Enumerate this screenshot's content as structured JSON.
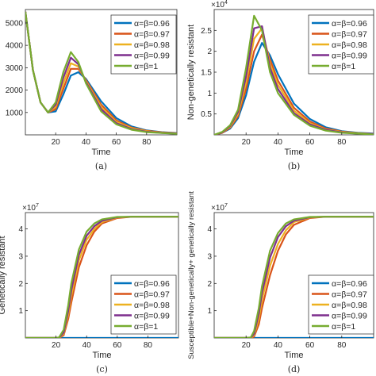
{
  "legend_labels": [
    "α=β=0.96",
    "α=β=0.97",
    "α=β=0.98",
    "α=β=0.99",
    "α=β=1"
  ],
  "series_colors": [
    "#0072BD",
    "#D95319",
    "#EDB120",
    "#7E2F8E",
    "#77AC30"
  ],
  "chart_data": [
    {
      "type": "line",
      "caption": "(a)",
      "xlabel": "Time",
      "ylabel": "",
      "exponent": "",
      "xlim": [
        0,
        100
      ],
      "ylim": [
        0,
        5600
      ],
      "xticks": [
        20,
        40,
        60,
        80
      ],
      "yticks": [
        1000,
        2000,
        3000,
        4000,
        5000
      ],
      "grid": false,
      "legend_position": "top-right",
      "x": [
        0,
        5,
        10,
        15,
        20,
        25,
        30,
        35,
        40,
        50,
        60,
        70,
        80,
        90,
        100
      ],
      "series": [
        {
          "name": "α=β=0.96",
          "values": [
            5500,
            2900,
            1450,
            1000,
            1050,
            1800,
            2650,
            2800,
            2500,
            1500,
            750,
            380,
            200,
            120,
            80
          ]
        },
        {
          "name": "α=β=0.97",
          "values": [
            5500,
            2900,
            1450,
            1000,
            1150,
            2050,
            2950,
            2950,
            2450,
            1350,
            650,
            330,
            180,
            110,
            70
          ]
        },
        {
          "name": "α=β=0.98",
          "values": [
            5500,
            2900,
            1450,
            1000,
            1250,
            2300,
            3200,
            3050,
            2400,
            1250,
            580,
            300,
            160,
            100,
            60
          ]
        },
        {
          "name": "α=β=0.99",
          "values": [
            5500,
            2900,
            1450,
            1000,
            1350,
            2550,
            3450,
            3150,
            2350,
            1150,
            520,
            260,
            140,
            90,
            55
          ]
        },
        {
          "name": "α=β=1",
          "values": [
            5500,
            2900,
            1450,
            1000,
            1450,
            2800,
            3700,
            3250,
            2300,
            1050,
            470,
            230,
            120,
            80,
            50
          ]
        }
      ]
    },
    {
      "type": "line",
      "caption": "(b)",
      "xlabel": "Time",
      "ylabel": "Non-genetically resistant",
      "exponent": "4",
      "xlim": [
        0,
        100
      ],
      "ylim": [
        0,
        3.0
      ],
      "xticks": [
        20,
        40,
        60,
        80
      ],
      "yticks": [
        0.5,
        1,
        1.5,
        2,
        2.5
      ],
      "grid": false,
      "legend_position": "top-right",
      "x": [
        0,
        5,
        10,
        15,
        20,
        25,
        30,
        35,
        40,
        50,
        60,
        70,
        80,
        90,
        100
      ],
      "series": [
        {
          "name": "α=β=0.96",
          "values": [
            0.0,
            0.05,
            0.15,
            0.4,
            0.95,
            1.75,
            2.2,
            1.9,
            1.45,
            0.75,
            0.38,
            0.18,
            0.09,
            0.05,
            0.03
          ]
        },
        {
          "name": "α=β=0.97",
          "values": [
            0.0,
            0.05,
            0.17,
            0.45,
            1.1,
            2.0,
            2.4,
            1.8,
            1.3,
            0.65,
            0.32,
            0.15,
            0.08,
            0.04,
            0.02
          ]
        },
        {
          "name": "α=β=0.98",
          "values": [
            0.0,
            0.06,
            0.19,
            0.5,
            1.25,
            2.3,
            2.55,
            1.7,
            1.2,
            0.58,
            0.28,
            0.13,
            0.07,
            0.04,
            0.02
          ]
        },
        {
          "name": "α=β=0.99",
          "values": [
            0.0,
            0.06,
            0.21,
            0.55,
            1.4,
            2.55,
            2.6,
            1.6,
            1.1,
            0.52,
            0.25,
            0.12,
            0.06,
            0.03,
            0.02
          ]
        },
        {
          "name": "α=β=1",
          "values": [
            0.0,
            0.07,
            0.23,
            0.6,
            1.6,
            2.85,
            2.5,
            1.5,
            1.0,
            0.48,
            0.22,
            0.1,
            0.05,
            0.03,
            0.01
          ]
        }
      ]
    },
    {
      "type": "line",
      "caption": "(c)",
      "xlabel": "Time",
      "ylabel": "Genetically resistant",
      "exponent": "7",
      "xlim": [
        0,
        100
      ],
      "ylim": [
        0,
        4.6
      ],
      "xticks": [
        20,
        40,
        60,
        80
      ],
      "yticks": [
        1,
        2,
        3,
        4
      ],
      "grid": false,
      "legend_position": "bottom-right",
      "x": [
        0,
        20,
        22,
        25,
        28,
        30,
        35,
        40,
        45,
        50,
        60,
        70,
        80,
        100
      ],
      "series": [
        {
          "name": "α=β=0.96",
          "values": [
            0,
            0,
            0,
            0,
            0,
            0,
            0,
            0,
            0,
            0,
            0,
            0,
            0,
            0
          ]
        },
        {
          "name": "α=β=0.97",
          "values": [
            0,
            0,
            0,
            0.1,
            0.7,
            1.3,
            2.6,
            3.4,
            3.9,
            4.2,
            4.4,
            4.45,
            4.45,
            4.45
          ]
        },
        {
          "name": "α=β=0.98",
          "values": [
            0,
            0,
            0,
            0.15,
            0.85,
            1.55,
            2.85,
            3.6,
            4.0,
            4.25,
            4.42,
            4.45,
            4.45,
            4.45
          ]
        },
        {
          "name": "α=β=0.99",
          "values": [
            0,
            0,
            0.01,
            0.2,
            1.0,
            1.75,
            3.05,
            3.75,
            4.1,
            4.3,
            4.43,
            4.45,
            4.45,
            4.45
          ]
        },
        {
          "name": "α=β=1",
          "values": [
            0,
            0,
            0.02,
            0.3,
            1.2,
            2.0,
            3.25,
            3.9,
            4.2,
            4.35,
            4.44,
            4.45,
            4.45,
            4.45
          ]
        }
      ]
    },
    {
      "type": "line",
      "caption": "(d)",
      "xlabel": "Time",
      "ylabel": "Susceptible+Non-genetically+ genetically resistant",
      "exponent": "7",
      "xlim": [
        0,
        100
      ],
      "ylim": [
        0,
        4.6
      ],
      "xticks": [
        20,
        40,
        60,
        80
      ],
      "yticks": [
        1,
        2,
        3,
        4
      ],
      "grid": false,
      "legend_position": "bottom-right",
      "x": [
        0,
        20,
        23,
        25,
        28,
        30,
        35,
        40,
        45,
        50,
        60,
        70,
        80,
        100
      ],
      "series": [
        {
          "name": "α=β=0.96",
          "values": [
            0,
            0,
            0,
            0,
            0,
            0,
            0,
            0,
            0,
            0,
            0,
            0,
            0,
            0
          ]
        },
        {
          "name": "α=β=0.97",
          "values": [
            0,
            0,
            0,
            0.05,
            0.5,
            1.1,
            2.3,
            3.2,
            3.8,
            4.15,
            4.4,
            4.45,
            4.45,
            4.45
          ]
        },
        {
          "name": "α=β=0.98",
          "values": [
            0,
            0,
            0,
            0.1,
            0.7,
            1.4,
            2.65,
            3.45,
            3.95,
            4.25,
            4.42,
            4.45,
            4.45,
            4.45
          ]
        },
        {
          "name": "α=β=0.99",
          "values": [
            0,
            0,
            0.01,
            0.15,
            0.9,
            1.65,
            2.95,
            3.7,
            4.1,
            4.3,
            4.43,
            4.45,
            4.45,
            4.45
          ]
        },
        {
          "name": "α=β=1",
          "values": [
            0,
            0,
            0.02,
            0.25,
            1.1,
            1.9,
            3.2,
            3.85,
            4.2,
            4.35,
            4.44,
            4.45,
            4.45,
            4.45
          ]
        }
      ]
    }
  ]
}
